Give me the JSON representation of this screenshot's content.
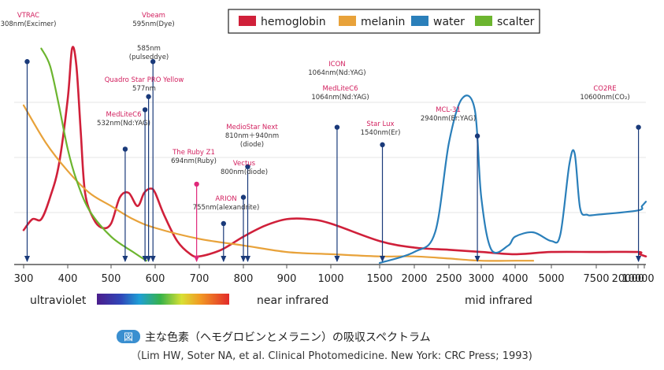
{
  "colors": {
    "hemoglobin": "#d0203a",
    "melanin": "#e8a23a",
    "water": "#2a7fba",
    "scatter": "#6cb52f",
    "laser_line": "#1a3a7a",
    "highlight": "#e0287a",
    "label_red": "#d21f5e"
  },
  "legend": [
    {
      "key": "hemoglobin",
      "label": "hemoglobin"
    },
    {
      "key": "melanin",
      "label": "melanin"
    },
    {
      "key": "water",
      "label": "water"
    },
    {
      "key": "scatter",
      "label": "scalter"
    }
  ],
  "chart_data": {
    "type": "line",
    "x_ticks": [
      "300",
      "400",
      "500",
      "600",
      "700",
      "800",
      "900",
      "1000",
      "1500",
      "2000",
      "2500",
      "3000",
      "4000",
      "5000",
      "7500",
      "10000",
      "20000"
    ],
    "series": [
      {
        "name": "hemoglobin",
        "points": [
          [
            300,
            0.15
          ],
          [
            320,
            0.2
          ],
          [
            340,
            0.2
          ],
          [
            360,
            0.3
          ],
          [
            380,
            0.45
          ],
          [
            400,
            0.75
          ],
          [
            410,
            0.98
          ],
          [
            420,
            0.9
          ],
          [
            430,
            0.6
          ],
          [
            440,
            0.32
          ],
          [
            460,
            0.2
          ],
          [
            480,
            0.16
          ],
          [
            500,
            0.18
          ],
          [
            520,
            0.3
          ],
          [
            540,
            0.32
          ],
          [
            560,
            0.26
          ],
          [
            575,
            0.32
          ],
          [
            590,
            0.34
          ],
          [
            600,
            0.32
          ],
          [
            620,
            0.22
          ],
          [
            650,
            0.1
          ],
          [
            680,
            0.04
          ],
          [
            700,
            0.03
          ],
          [
            750,
            0.06
          ],
          [
            800,
            0.12
          ],
          [
            850,
            0.17
          ],
          [
            900,
            0.2
          ],
          [
            950,
            0.2
          ],
          [
            1000,
            0.18
          ],
          [
            1500,
            0.1
          ],
          [
            2000,
            0.07
          ],
          [
            2500,
            0.06
          ],
          [
            3000,
            0.05
          ],
          [
            4000,
            0.04
          ],
          [
            5000,
            0.05
          ],
          [
            7500,
            0.05
          ],
          [
            10000,
            0.05
          ],
          [
            12000,
            0.04
          ],
          [
            20000,
            0.03
          ]
        ]
      },
      {
        "name": "melanin",
        "points": [
          [
            300,
            0.72
          ],
          [
            350,
            0.55
          ],
          [
            400,
            0.42
          ],
          [
            450,
            0.32
          ],
          [
            500,
            0.26
          ],
          [
            550,
            0.2
          ],
          [
            600,
            0.16
          ],
          [
            700,
            0.11
          ],
          [
            800,
            0.08
          ],
          [
            900,
            0.05
          ],
          [
            1000,
            0.04
          ],
          [
            1500,
            0.03
          ],
          [
            2000,
            0.03
          ],
          [
            2500,
            0.02
          ],
          [
            3000,
            0.01
          ],
          [
            4000,
            0.01
          ],
          [
            4500,
            0.01
          ]
        ]
      },
      {
        "name": "water",
        "points": [
          [
            1500,
            0.0
          ],
          [
            2000,
            0.05
          ],
          [
            2300,
            0.14
          ],
          [
            2500,
            0.55
          ],
          [
            2700,
            0.75
          ],
          [
            2900,
            0.7
          ],
          [
            3000,
            0.3
          ],
          [
            3300,
            0.06
          ],
          [
            3800,
            0.08
          ],
          [
            4000,
            0.12
          ],
          [
            4500,
            0.14
          ],
          [
            5000,
            0.1
          ],
          [
            5500,
            0.13
          ],
          [
            6000,
            0.45
          ],
          [
            6300,
            0.5
          ],
          [
            6600,
            0.25
          ],
          [
            7000,
            0.22
          ],
          [
            7500,
            0.22
          ],
          [
            10000,
            0.24
          ],
          [
            15000,
            0.26
          ],
          [
            20000,
            0.28
          ]
        ]
      },
      {
        "name": "scalter",
        "points": [
          [
            340,
            0.98
          ],
          [
            360,
            0.9
          ],
          [
            380,
            0.72
          ],
          [
            400,
            0.52
          ],
          [
            420,
            0.38
          ],
          [
            450,
            0.24
          ],
          [
            500,
            0.12
          ],
          [
            550,
            0.05
          ],
          [
            580,
            0.01
          ]
        ]
      }
    ],
    "lasers": [
      {
        "x": 308,
        "name": "VTRAC",
        "spec": "308nm(Excimer)",
        "h": 0.92
      },
      {
        "x": 532,
        "name": "MedLiteC6",
        "spec": "532nm(Nd:YAG)",
        "h": 0.52
      },
      {
        "x": 577,
        "name": "Quadro Star PRO Yellow",
        "spec": "577nm",
        "h": 0.7
      },
      {
        "x": 585,
        "name": "",
        "spec": "585nm (pulseddye)",
        "h": 0.76
      },
      {
        "x": 595,
        "name": "Vbeam",
        "spec": "595nm(Dye)",
        "h": 0.92
      },
      {
        "x": 694,
        "name": "The Ruby Z1",
        "spec": "694nm(Ruby)",
        "h": 0.36
      },
      {
        "x": 755,
        "name": "ARION",
        "spec": "755nm(alexandrite)",
        "h": 0.18
      },
      {
        "x": 800,
        "name": "Vectus",
        "spec": "800nm(diode)",
        "h": 0.3
      },
      {
        "x": 810,
        "name": "MedioStar Next",
        "spec": "810nm＋940nm (diode)",
        "h": 0.44
      },
      {
        "x": 1064,
        "name": "MedLiteC6",
        "spec": "1064nm(Nd:YAG)",
        "h": 0.62
      },
      {
        "x": 1064,
        "name": "ICON",
        "spec": "1064nm(Nd:YAG)",
        "h": 0.0
      },
      {
        "x": 1540,
        "name": "Star Lux",
        "spec": "1540nm(Er)",
        "h": 0.54
      },
      {
        "x": 2940,
        "name": "MCL-31",
        "spec": "2940nm(Er:YAG)",
        "h": 0.58
      },
      {
        "x": 10600,
        "name": "CO2RE",
        "spec": "10600nm(CO₂)",
        "h": 0.62
      }
    ],
    "regions": [
      "ultraviolet",
      "near infrared",
      "mid infrared"
    ]
  },
  "caption": {
    "badge": "図",
    "line1": "主な色素（ヘモグロビンとメラニン）の吸収スペクトラム",
    "line2": "（Lim HW, Soter NA, et al. Clinical Photomedicine. New York: CRC Press; 1993)"
  }
}
